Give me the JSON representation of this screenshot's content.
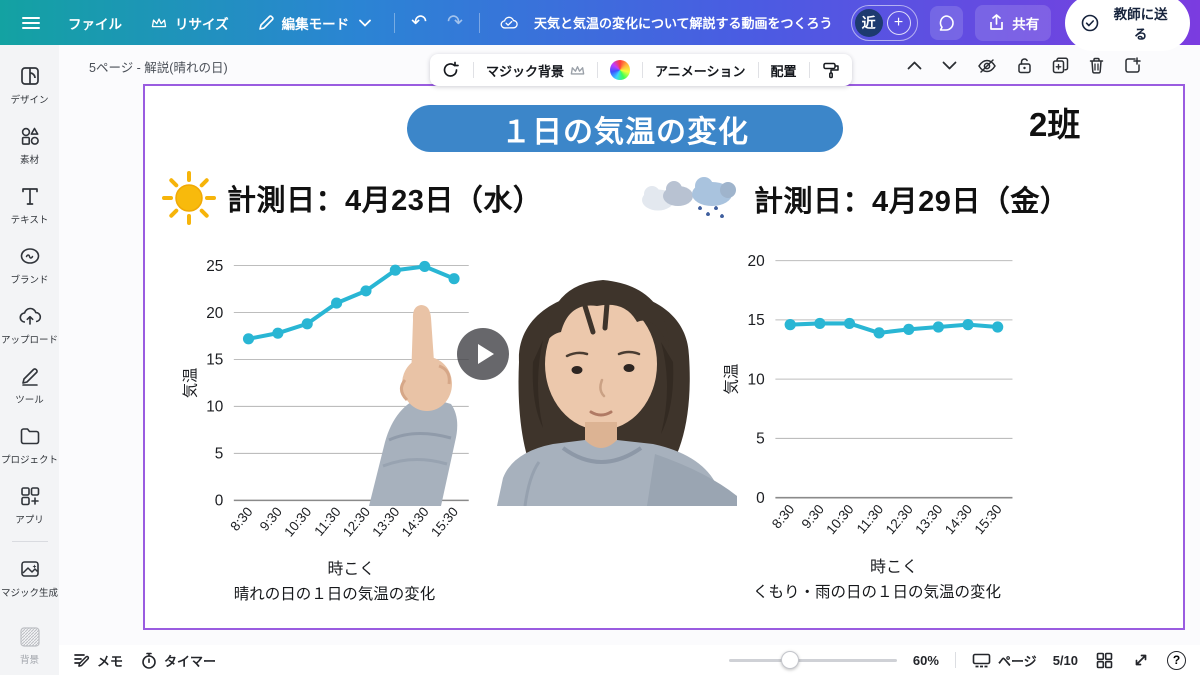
{
  "topbar": {
    "file_label": "ファイル",
    "resize_label": "リサイズ",
    "edit_mode_label": "編集モード",
    "doc_title": "天気と気温の変化について解説する動画をつくろう",
    "avatar_initial": "近",
    "share_label": "共有",
    "send_teacher_label": "教師に送る"
  },
  "sidebar": {
    "items": [
      {
        "id": "design",
        "label": "デザイン"
      },
      {
        "id": "elements",
        "label": "素材"
      },
      {
        "id": "text",
        "label": "テキスト"
      },
      {
        "id": "brand",
        "label": "ブランド"
      },
      {
        "id": "uploads",
        "label": "アップロード"
      },
      {
        "id": "tools",
        "label": "ツール"
      },
      {
        "id": "projects",
        "label": "プロジェクト"
      },
      {
        "id": "apps",
        "label": "アプリ"
      },
      {
        "id": "magic",
        "label": "マジック生成"
      },
      {
        "id": "background",
        "label": "背景"
      }
    ]
  },
  "canvas": {
    "page_label": "5ページ - 解説(晴れの日)",
    "magic_bg_label": "マジック背景",
    "animation_label": "アニメーション",
    "position_label": "配置"
  },
  "slide": {
    "title": "１日の気温の変化",
    "group_label": "2班",
    "sunny_heading": "計測日：4月23日（水）",
    "rainy_heading": "計測日：4月29日（金）"
  },
  "chart_data": [
    {
      "type": "line",
      "title": "晴れの日の１日の気温の変化",
      "categories": [
        "8:30",
        "9:30",
        "10:30",
        "11:30",
        "12:30",
        "13:30",
        "14:30",
        "15:30"
      ],
      "values": [
        17.2,
        17.8,
        18.8,
        21.0,
        22.3,
        24.5,
        24.9,
        23.6
      ],
      "xlabel": "時こく",
      "ylabel": "気温",
      "ylim": [
        0,
        25
      ],
      "ytick": 5,
      "line_color": "#29b6d4",
      "grid": true,
      "legend": false
    },
    {
      "type": "line",
      "title": "くもり・雨の日の１日の気温の変化",
      "categories": [
        "8:30",
        "9:30",
        "10:30",
        "11:30",
        "12:30",
        "13:30",
        "14:30",
        "15:30"
      ],
      "values": [
        14.6,
        14.7,
        14.7,
        13.9,
        14.2,
        14.4,
        14.6,
        14.4
      ],
      "xlabel": "時こく",
      "ylabel": "気温",
      "ylim": [
        0,
        20
      ],
      "ytick": 5,
      "line_color": "#29b6d4",
      "grid": true,
      "legend": false
    }
  ],
  "bottombar": {
    "memo_label": "メモ",
    "timer_label": "タイマー",
    "zoom_value": "60%",
    "page_label": "ページ",
    "page_indicator": "5/10"
  }
}
